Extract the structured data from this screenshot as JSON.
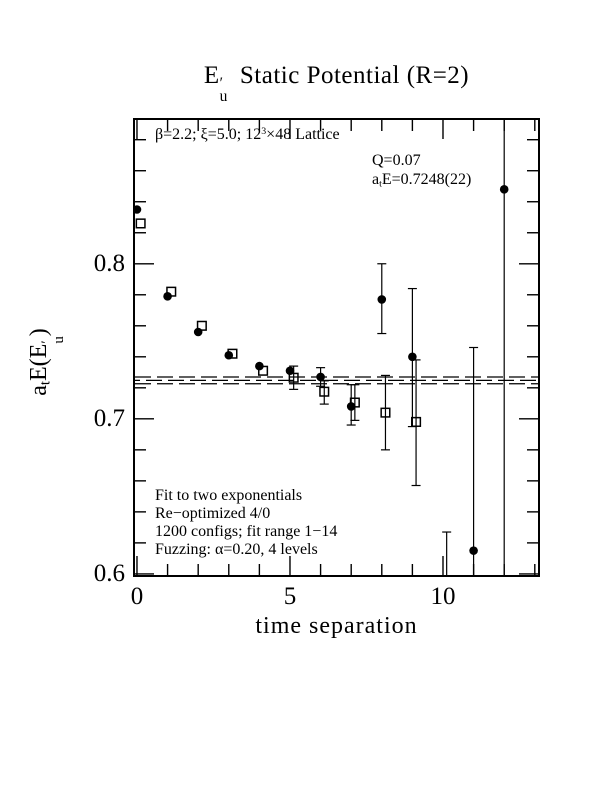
{
  "title": {
    "e": "E",
    "prime": "′",
    "sub": "u",
    "rest": "Static Potential (R=2)"
  },
  "axes": {
    "x_label": "time separation",
    "x_tick_labels": [
      "0",
      "5",
      "10"
    ],
    "y_tick_labels": [
      "0.6",
      "0.7",
      "0.8"
    ],
    "y_label_parts": {
      "a": "a",
      "sub_t": "t",
      "mid": "E(E",
      "prime": "′",
      "sub_u": "u",
      "close": ")"
    }
  },
  "annotations": {
    "lattice": {
      "pre": "β=2.2; ξ=5.0; 12",
      "sup": "3",
      "post": "×48 Lattice"
    },
    "q": "Q=0.07",
    "ate": {
      "pre": "a",
      "sub": "t",
      "post": "E=0.7248(22)"
    },
    "fit_block": [
      "Fit to two exponentials",
      "Re−optimized 4/0",
      "1200 configs; fit range 1−14",
      "Fuzzing: α=0.20, 4 levels"
    ]
  },
  "colors": {
    "ink": "#000000",
    "background": "#ffffff"
  },
  "chart_data": {
    "type": "scatter",
    "title": "E'_u Static Potential (R=2)",
    "xlabel": "time separation",
    "ylabel": "a_t E(E'_u)",
    "xlim": [
      -0.13,
      13.17
    ],
    "ylim": [
      0.598,
      0.894
    ],
    "grid": false,
    "x_major_ticks": [
      0,
      5,
      10
    ],
    "x_minor_step": 1,
    "y_major_ticks": [
      0.6,
      0.7,
      0.8
    ],
    "y_minor_step": 0.02,
    "fit_band": {
      "center": 0.7248,
      "upper": 0.727,
      "lower": 0.7226,
      "result": "a_tE=0.7248(22)",
      "Q": 0.07
    },
    "series": [
      {
        "name": "filled-circles",
        "marker": "circle",
        "x_offset": 0,
        "points": [
          {
            "x": 0,
            "y": 0.835
          },
          {
            "x": 1,
            "y": 0.779
          },
          {
            "x": 2,
            "y": 0.756
          },
          {
            "x": 3,
            "y": 0.741
          },
          {
            "x": 4,
            "y": 0.734
          },
          {
            "x": 5,
            "y": 0.731
          },
          {
            "x": 6,
            "y": 0.727,
            "lo": 0.721,
            "hi": 0.733
          },
          {
            "x": 7,
            "y": 0.708,
            "lo": 0.696,
            "hi": 0.722
          },
          {
            "x": 8,
            "y": 0.777,
            "lo": 0.755,
            "hi": 0.8
          },
          {
            "x": 9,
            "y": 0.74,
            "lo": 0.695,
            "hi": 0.784
          },
          {
            "x": 11,
            "y": 0.615,
            "lo": 0.59,
            "hi": 0.746,
            "clip_lo": true
          },
          {
            "x": 12,
            "y": 0.848,
            "lo": 0.59,
            "hi": 0.9,
            "clip_lo": true,
            "clip_hi": true
          }
        ]
      },
      {
        "name": "open-squares",
        "marker": "square",
        "x_offset": 0.12,
        "points": [
          {
            "x": 0,
            "y": 0.826
          },
          {
            "x": 1,
            "y": 0.782
          },
          {
            "x": 2,
            "y": 0.76
          },
          {
            "x": 3,
            "y": 0.742
          },
          {
            "x": 4,
            "y": 0.731
          },
          {
            "x": 5,
            "y": 0.7265,
            "lo": 0.719,
            "hi": 0.734
          },
          {
            "x": 6,
            "y": 0.7175,
            "lo": 0.7095,
            "hi": 0.7245
          },
          {
            "x": 7,
            "y": 0.7105,
            "lo": 0.699,
            "hi": 0.722
          },
          {
            "x": 8,
            "y": 0.704,
            "lo": 0.68,
            "hi": 0.728
          },
          {
            "x": 9,
            "y": 0.698,
            "lo": 0.657,
            "hi": 0.738
          },
          {
            "x": 10,
            "y": null,
            "lo": 0.59,
            "hi": 0.627,
            "clip_lo": true
          }
        ]
      }
    ]
  }
}
